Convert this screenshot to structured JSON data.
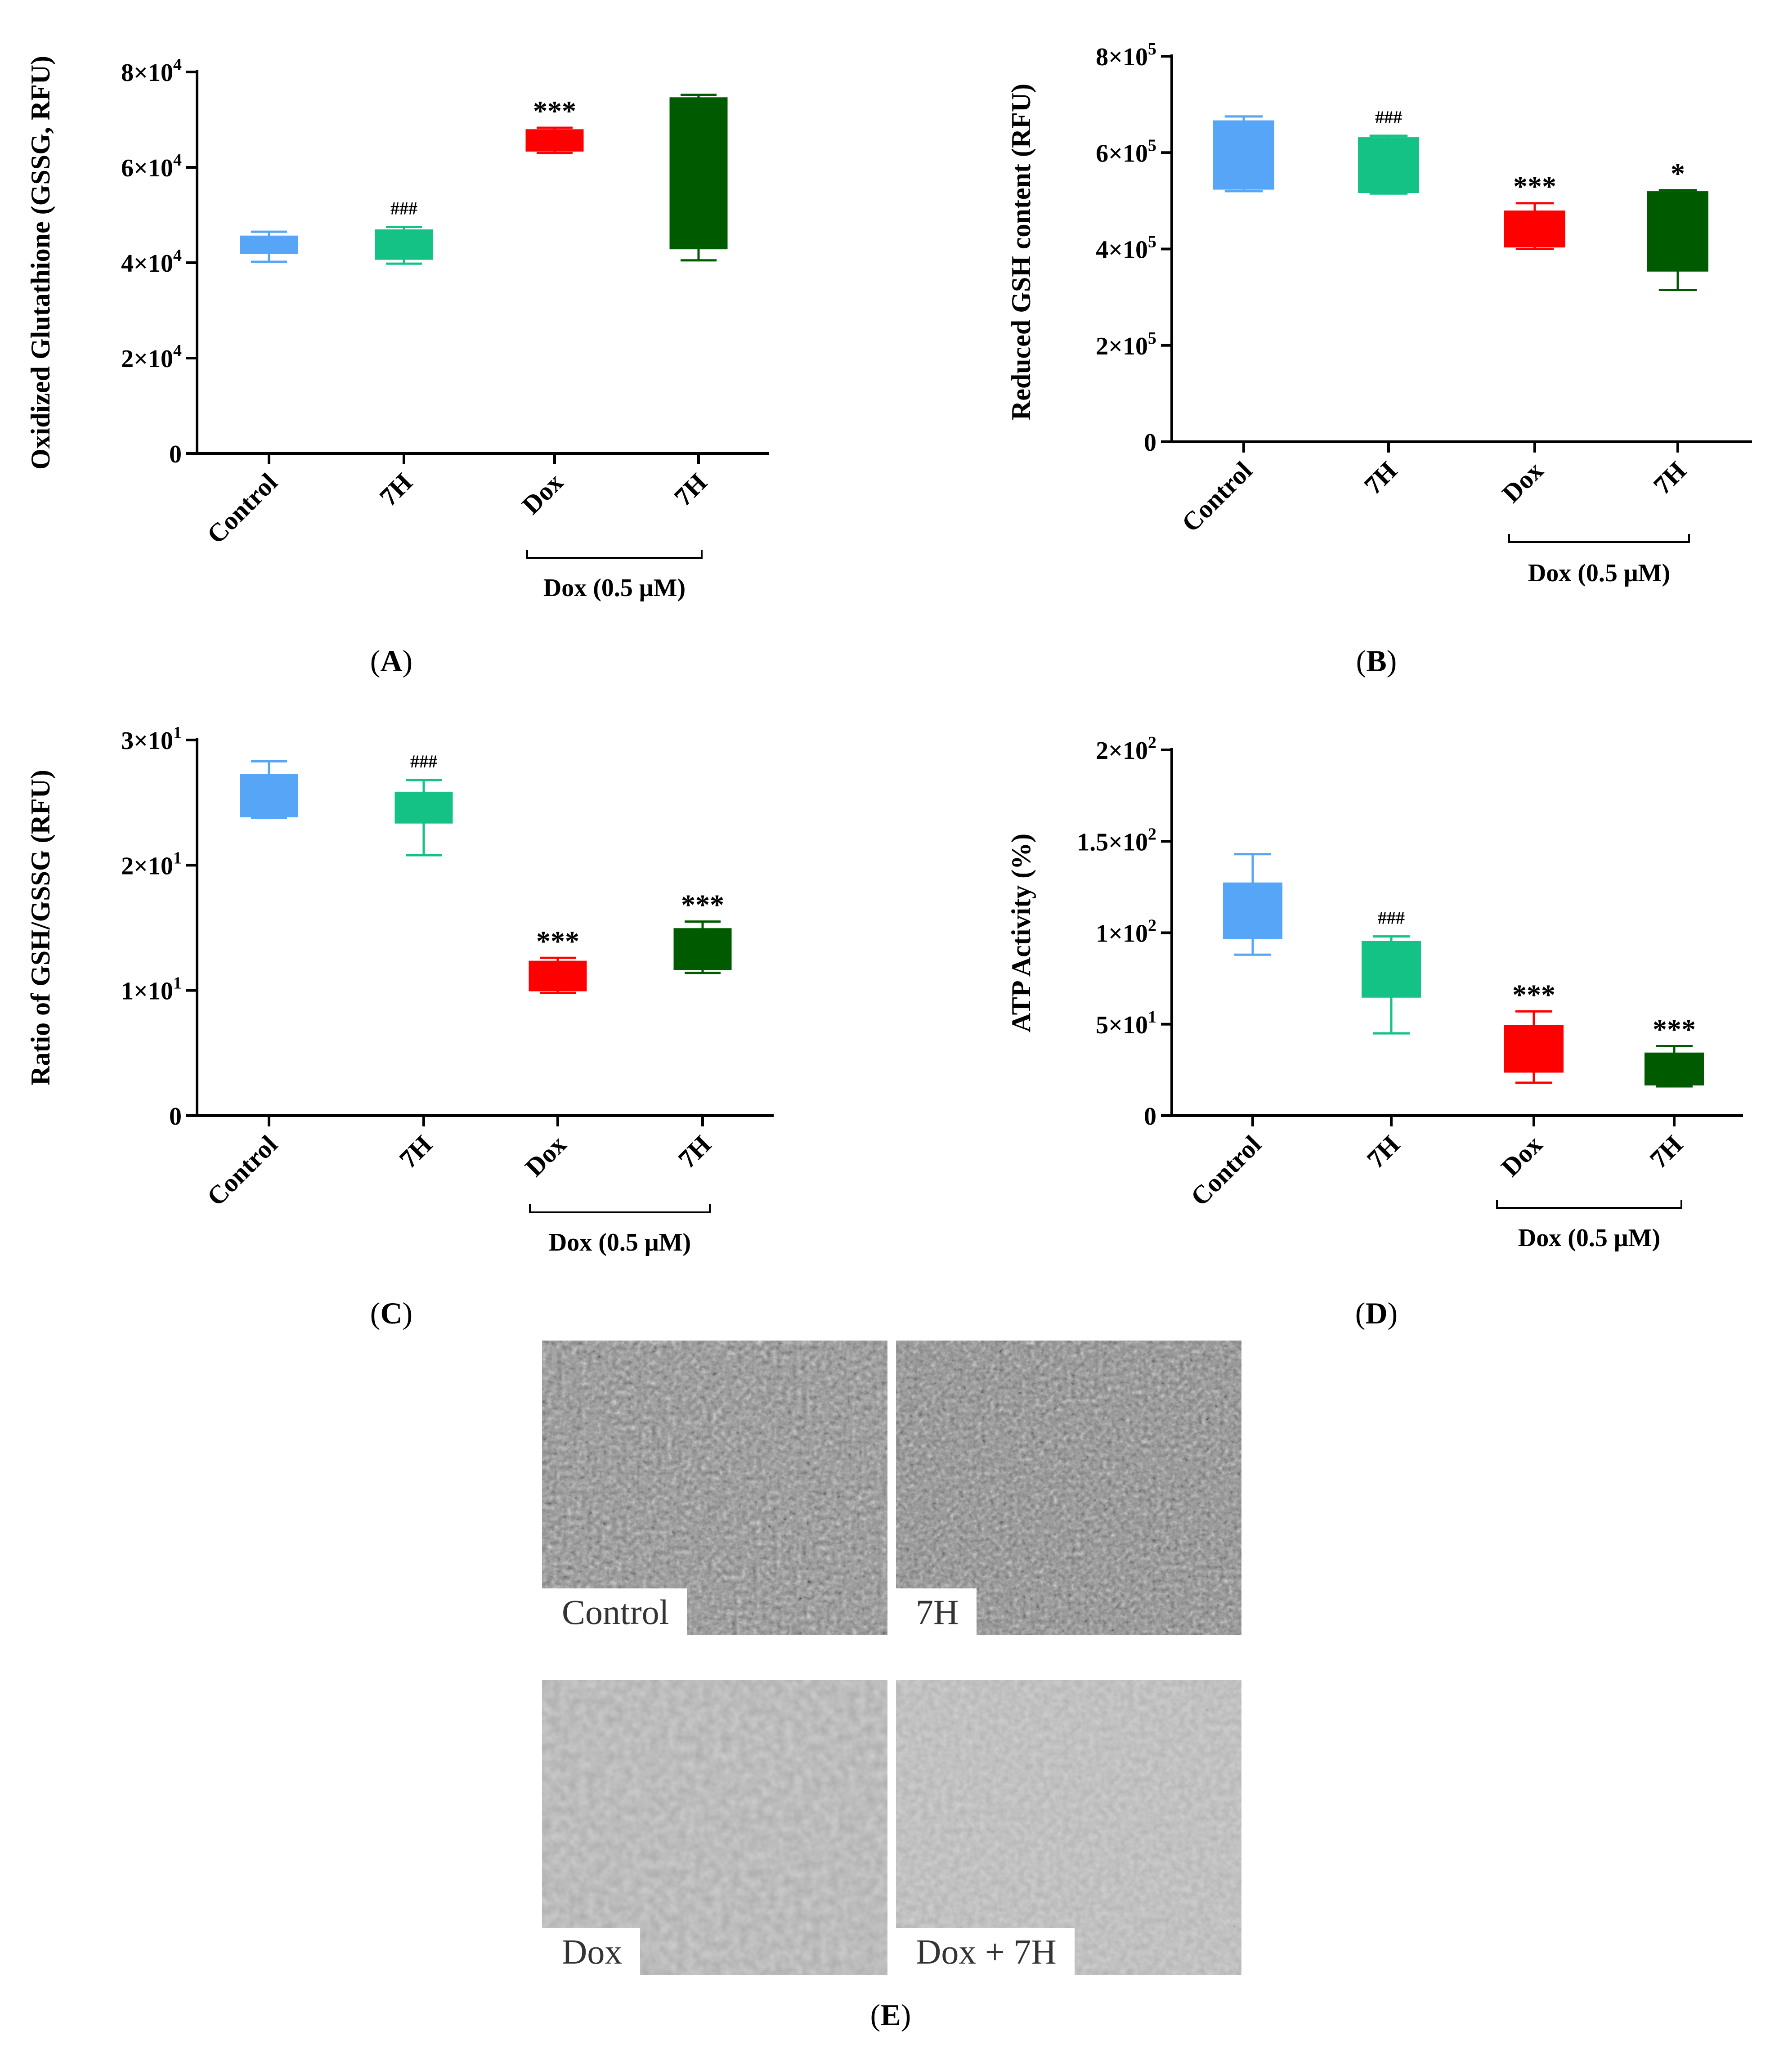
{
  "colors": {
    "control": "#56A5F7",
    "h7": "#13C284",
    "dox": "#FF0000",
    "dox_7h": "#005A00",
    "axis": "#000000"
  },
  "chart_data": [
    {
      "panel": "A",
      "type": "box",
      "ylabel": "Oxidized Glutathione (GSSG, RFU)",
      "ylim": [
        0,
        80000
      ],
      "yticks": [
        0,
        20000,
        40000,
        60000,
        80000
      ],
      "ytick_labels": [
        {
          "m": "0",
          "e": ""
        },
        {
          "m": "2×10",
          "e": "4"
        },
        {
          "m": "4×10",
          "e": "4"
        },
        {
          "m": "6×10",
          "e": "4"
        },
        {
          "m": "8×10",
          "e": "4"
        }
      ],
      "categories": [
        "Control",
        "7H",
        "Dox",
        "7H"
      ],
      "bracket_label": "Dox (0.5 μM)",
      "boxes": [
        {
          "min": 40200,
          "q1": 42000,
          "median": 43500,
          "q3": 45500,
          "max": 46500,
          "annotation": ""
        },
        {
          "min": 39800,
          "q1": 40800,
          "median": 42500,
          "q3": 46800,
          "max": 47500,
          "annotation": "###"
        },
        {
          "min": 63000,
          "q1": 63500,
          "median": 65500,
          "q3": 67800,
          "max": 68300,
          "annotation": "***"
        },
        {
          "min": 40500,
          "q1": 43000,
          "median": 60000,
          "q3": 74500,
          "max": 75200,
          "annotation": ""
        }
      ]
    },
    {
      "panel": "B",
      "type": "box",
      "ylabel": "Reduced GSH content (RFU)",
      "ylim": [
        0,
        800000
      ],
      "yticks": [
        0,
        200000,
        400000,
        600000,
        800000
      ],
      "ytick_labels": [
        {
          "m": "0",
          "e": ""
        },
        {
          "m": "2×10",
          "e": "5"
        },
        {
          "m": "4×10",
          "e": "5"
        },
        {
          "m": "6×10",
          "e": "5"
        },
        {
          "m": "8×10",
          "e": "5"
        }
      ],
      "categories": [
        "Control",
        "7H",
        "Dox",
        "7H"
      ],
      "bracket_label": "Dox (0.5 μM)",
      "boxes": [
        {
          "min": 520000,
          "q1": 525000,
          "median": 600000,
          "q3": 665000,
          "max": 675000,
          "annotation": ""
        },
        {
          "min": 515000,
          "q1": 518000,
          "median": 580000,
          "q3": 630000,
          "max": 635000,
          "annotation": "###"
        },
        {
          "min": 400000,
          "q1": 405000,
          "median": 440000,
          "q3": 478000,
          "max": 495000,
          "annotation": "***"
        },
        {
          "min": 315000,
          "q1": 355000,
          "median": 440000,
          "q3": 518000,
          "max": 522000,
          "annotation": "*"
        }
      ]
    },
    {
      "panel": "C",
      "type": "box",
      "ylabel": "Ratio of GSH/GSSG (RFU)",
      "ylim": [
        0,
        30
      ],
      "yticks": [
        0,
        10,
        20,
        30
      ],
      "ytick_labels": [
        {
          "m": "0",
          "e": ""
        },
        {
          "m": "1×10",
          "e": "1"
        },
        {
          "m": "2×10",
          "e": "1"
        },
        {
          "m": "3×10",
          "e": "1"
        }
      ],
      "categories": [
        "Control",
        "7H",
        "Dox",
        "7H"
      ],
      "bracket_label": "Dox (0.5 μM)",
      "boxes": [
        {
          "min": 23.8,
          "q1": 23.9,
          "median": 25.5,
          "q3": 27.2,
          "max": 28.3,
          "annotation": ""
        },
        {
          "min": 20.8,
          "q1": 23.4,
          "median": 24.5,
          "q3": 25.8,
          "max": 26.8,
          "annotation": "###"
        },
        {
          "min": 9.8,
          "q1": 10.0,
          "median": 11.0,
          "q3": 12.3,
          "max": 12.6,
          "annotation": "***"
        },
        {
          "min": 11.4,
          "q1": 11.7,
          "median": 13.5,
          "q3": 14.9,
          "max": 15.5,
          "annotation": "***"
        }
      ]
    },
    {
      "panel": "D",
      "type": "box",
      "ylabel": "ATP Activity (%)",
      "ylim": [
        0,
        200
      ],
      "yticks": [
        0,
        50,
        100,
        150,
        200
      ],
      "ytick_labels": [
        {
          "m": "0",
          "e": ""
        },
        {
          "m": "5×10",
          "e": "1"
        },
        {
          "m": "1×10",
          "e": "2"
        },
        {
          "m": "1.5×10",
          "e": "2"
        },
        {
          "m": "2×10",
          "e": "2"
        }
      ],
      "categories": [
        "Control",
        "7H",
        "Dox",
        "7H"
      ],
      "bracket_label": "Dox (0.5 μM)",
      "boxes": [
        {
          "min": 88,
          "q1": 97,
          "median": 112,
          "q3": 127,
          "max": 143,
          "annotation": ""
        },
        {
          "min": 45,
          "q1": 65,
          "median": 80,
          "q3": 95,
          "max": 98,
          "annotation": "###"
        },
        {
          "min": 18,
          "q1": 24,
          "median": 36,
          "q3": 49,
          "max": 57,
          "annotation": "***"
        },
        {
          "min": 16,
          "q1": 17,
          "median": 25,
          "q3": 34,
          "max": 38,
          "annotation": "***"
        }
      ]
    }
  ],
  "panel_labels": [
    "A",
    "B",
    "C",
    "D",
    "E"
  ],
  "micrographs": {
    "panel": "E",
    "tiles": [
      {
        "label": "Control"
      },
      {
        "label": "7H"
      },
      {
        "label": "Dox"
      },
      {
        "label": "Dox + 7H"
      }
    ]
  }
}
